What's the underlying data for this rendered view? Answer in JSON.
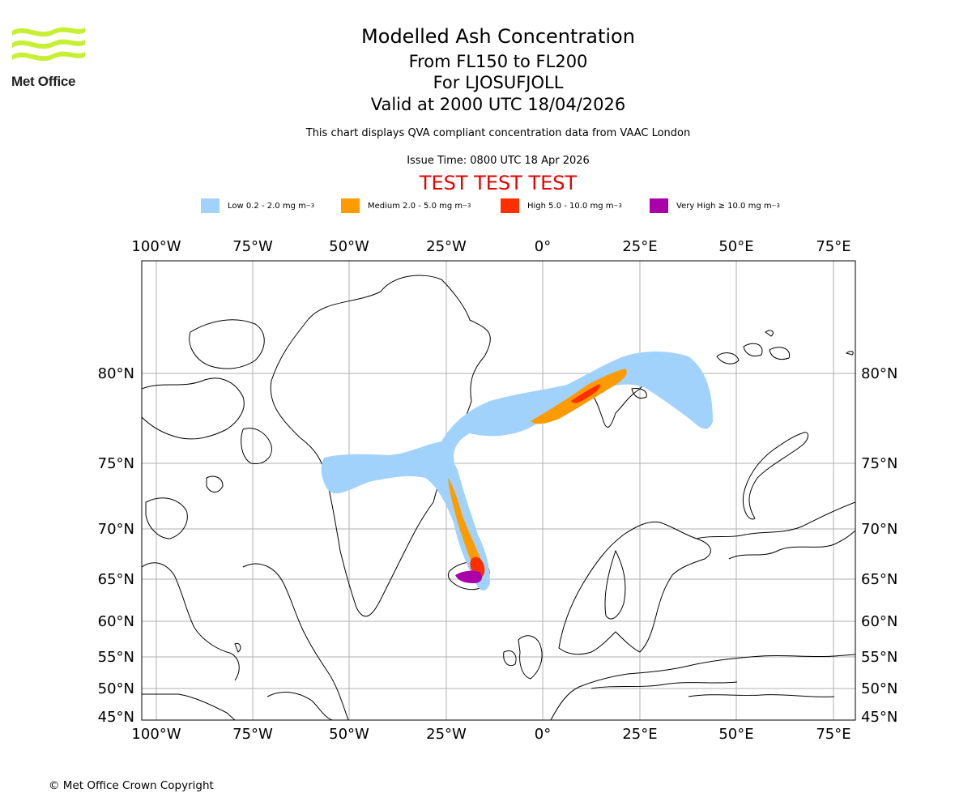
{
  "logo": {
    "name": "Met Office"
  },
  "header": {
    "title": "Modelled Ash Concentration",
    "level": "From FL150 to FL200",
    "volcano": "For LJOSUFJOLL",
    "valid": "Valid at 2000 UTC 18/04/2026",
    "compliance": "This chart displays QVA compliant concentration data from VAAC London",
    "issue": "Issue Time: 0800 UTC 18 Apr 2026",
    "test": "TEST TEST TEST"
  },
  "legend": [
    {
      "label": "Low 0.2 - 2.0 mg m",
      "unit_sup": "−3",
      "color": "#a0d2fb"
    },
    {
      "label": "Medium 2.0 - 5.0 mg m",
      "unit_sup": "−3",
      "color": "#ff9a00"
    },
    {
      "label": "High 5.0 - 10.0 mg m",
      "unit_sup": "−3",
      "color": "#ff2f00"
    },
    {
      "label": "Very High ≥ 10.0 mg m",
      "unit_sup": "−3",
      "color": "#aa00aa"
    }
  ],
  "chart_data": {
    "type": "map",
    "projection": "North Polar Stereographic",
    "lon_ticks": [
      "100°W",
      "75°W",
      "50°W",
      "25°W",
      "0°",
      "25°E",
      "50°E",
      "75°E"
    ],
    "lat_ticks": [
      "80°N",
      "75°N",
      "70°N",
      "65°N",
      "60°N",
      "55°N",
      "50°N",
      "45°N"
    ],
    "source_volcano": "LJOSUFJOLL",
    "ash_levels": [
      "Low",
      "Medium",
      "High",
      "Very High"
    ]
  },
  "footer": {
    "copyright": "© Met Office Crown Copyright"
  }
}
